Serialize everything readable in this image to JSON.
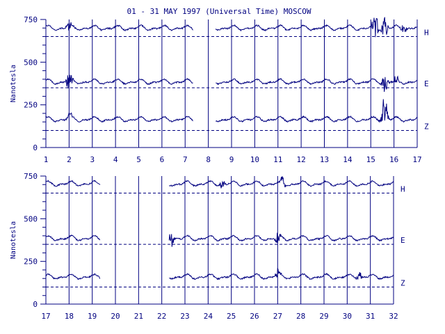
{
  "title": "01 - 31 MAY 1997 (Universal Time) MOSCOW",
  "chart_data": [
    {
      "type": "line",
      "ylabel": "Nanotesla",
      "xlim": [
        1,
        17
      ],
      "ylim": [
        0,
        750
      ],
      "yticks": [
        0,
        250,
        500,
        750
      ],
      "xticks": [
        1,
        2,
        3,
        4,
        5,
        6,
        7,
        8,
        9,
        10,
        11,
        12,
        13,
        14,
        15,
        16,
        17
      ],
      "gaps": [
        [
          7.35,
          8.3
        ]
      ],
      "series": [
        {
          "name": "H",
          "baseline": 650,
          "level": 700,
          "disturbances": [
            {
              "x": 2,
              "amp": 35
            },
            {
              "x": 15.2,
              "amp": 90
            },
            {
              "x": 15.6,
              "amp": 70
            },
            {
              "x": 16.4,
              "amp": 30
            }
          ]
        },
        {
          "name": "E",
          "baseline": 350,
          "level": 385,
          "disturbances": [
            {
              "x": 2,
              "amp": 55
            },
            {
              "x": 15.6,
              "amp": 75
            },
            {
              "x": 16.1,
              "amp": 30
            }
          ]
        },
        {
          "name": "Z",
          "baseline": 100,
          "level": 165,
          "disturbances": [
            {
              "x": 2,
              "amp": 25
            },
            {
              "x": 15.6,
              "amp": 110
            }
          ]
        }
      ]
    },
    {
      "type": "line",
      "ylabel": "Nanotesla",
      "xlim": [
        17,
        32
      ],
      "ylim": [
        0,
        750
      ],
      "yticks": [
        0,
        250,
        500,
        750
      ],
      "xticks": [
        17,
        18,
        19,
        20,
        21,
        22,
        23,
        24,
        25,
        26,
        27,
        28,
        29,
        30,
        31,
        32
      ],
      "gaps": [
        [
          19.35,
          22.3
        ]
      ],
      "series": [
        {
          "name": "H",
          "baseline": 650,
          "level": 705,
          "disturbances": [
            {
              "x": 27.2,
              "amp": 35
            },
            {
              "x": 24.6,
              "amp": 25
            }
          ]
        },
        {
          "name": "E",
          "baseline": 350,
          "level": 385,
          "disturbances": [
            {
              "x": 22.4,
              "amp": 40
            },
            {
              "x": 27,
              "amp": 40
            }
          ]
        },
        {
          "name": "Z",
          "baseline": 100,
          "level": 160,
          "disturbances": [
            {
              "x": 27,
              "amp": 25
            },
            {
              "x": 30.5,
              "amp": 30
            }
          ]
        }
      ]
    }
  ]
}
